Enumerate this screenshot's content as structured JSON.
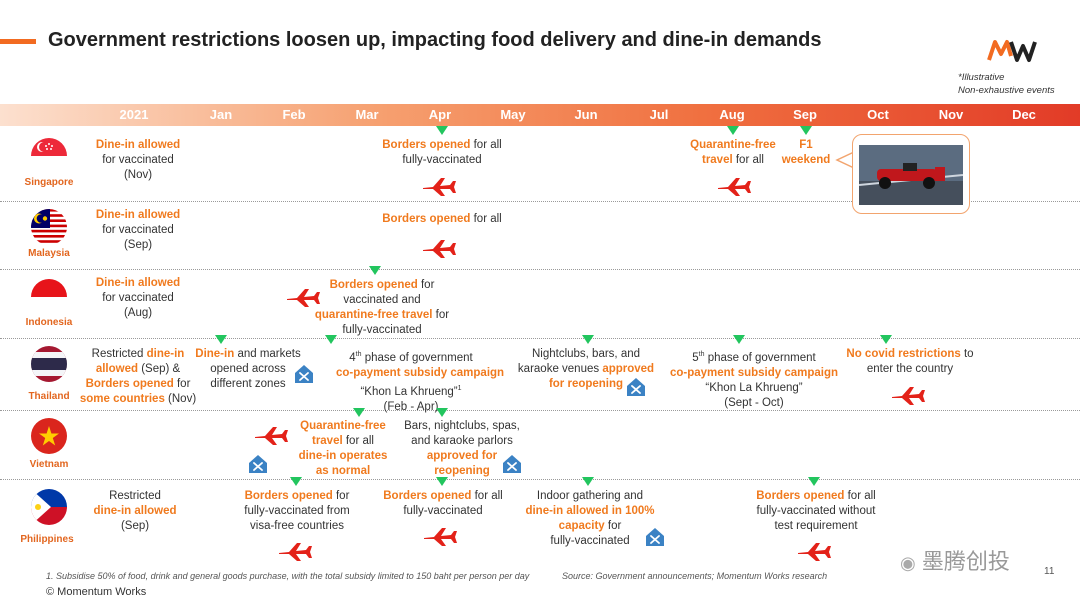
{
  "header": {
    "title": "Government restrictions loosen up, impacting food delivery and dine-in demands",
    "logo": "MW",
    "note1": "*Illustrative",
    "note2": "Non-exhaustive events"
  },
  "timeline": {
    "months": [
      "2021",
      "Jan",
      "Feb",
      "Mar",
      "Apr",
      "May",
      "Jun",
      "Jul",
      "Aug",
      "Sep",
      "Oct",
      "Nov",
      "Dec"
    ]
  },
  "colors": {
    "accent": "#f26b21",
    "highlight": "#f07a1e",
    "marker": "#22c55e",
    "plane": "#e32219",
    "reopen_icon": "#3b82c4"
  },
  "rows": {
    "sg": {
      "country": "Singapore",
      "dine": {
        "a1": "Dine-in allowed",
        "a2": "for vaccinated",
        "a3": "(Nov)"
      },
      "borders": {
        "hl": "Borders opened",
        "t1": " for all",
        "t2": "fully-vaccinated"
      },
      "quarantine": {
        "h1": "Quarantine-free",
        "h2": "travel",
        "t": " for all"
      },
      "f1": {
        "l1": "F1",
        "l2": "weekend"
      }
    },
    "my": {
      "country": "Malaysia",
      "dine": {
        "a1": "Dine-in allowed",
        "a2": "for vaccinated",
        "a3": "(Sep)"
      },
      "borders": {
        "hl": "Borders opened",
        "t": " for all"
      }
    },
    "id": {
      "country": "Indonesia",
      "dine": {
        "a1": "Dine-in allowed",
        "a2": "for vaccinated",
        "a3": "(Aug)"
      },
      "borders": {
        "hl": "Borders opened",
        "t1": " for",
        "t2": "vaccinated and",
        "h3": "quarantine-free travel",
        "t3": " for",
        "t4": "fully-vaccinated"
      }
    },
    "th": {
      "country": "Thailand",
      "restrict": {
        "l1a": "Restricted ",
        "l1b": "dine-in",
        "l2a": "allowed",
        "l2b": " (Sep) &",
        "l3a": "Borders opened",
        "l3b": " for",
        "l4a": "some countries",
        "l4b": " (Nov)"
      },
      "dinein": {
        "h": "Dine-in",
        "t1": " and markets",
        "t2": "opened across",
        "t3": "different zones"
      },
      "phase4": {
        "n": "4",
        "sup": "th",
        "t1": " phase of government",
        "h": "co-payment subsidy campaign",
        "q": "“Khon La Khrueng”",
        "s": "1",
        "p": "(Feb - Apr)"
      },
      "nightclubs": {
        "t1": "Nightclubs, bars, and",
        "t2a": "karaoke venues ",
        "h2": "approved",
        "h3": "for reopening"
      },
      "phase5": {
        "n": "5",
        "sup": "th",
        "t1": " phase of government",
        "h": "co-payment subsidy campaign",
        "q": "“Khon La Khrueng”",
        "p": "(Sept - Oct)"
      },
      "nocovid": {
        "h": "No covid restrictions",
        "t1": " to",
        "t2": "enter the country"
      }
    },
    "vn": {
      "country": "Vietnam",
      "quarantine": {
        "h1": "Quarantine-free",
        "h2": "travel",
        "t2": " for all",
        "h3": "dine-in operates",
        "h4": "as normal"
      },
      "bars": {
        "t1": "Bars, nightclubs, spas,",
        "t2": "and karaoke parlors",
        "h3": "approved for",
        "h4": "reopening"
      }
    },
    "ph": {
      "country": "Philippines",
      "restrict": {
        "t1": "Restricted",
        "h2": "dine-in allowed",
        "t3": "(Sep)"
      },
      "b1": {
        "h": "Borders opened",
        "t1": " for",
        "t2": "fully-vaccinated from",
        "t3": "visa-free countries"
      },
      "b2": {
        "h": "Borders opened",
        "t1": " for all",
        "t2": "fully-vaccinated"
      },
      "indoor": {
        "t1": "Indoor gathering and",
        "h2": "dine-in allowed in 100%",
        "h3": "capacity",
        "t3": " for",
        "t4": "fully-vaccinated"
      },
      "b3": {
        "h": "Borders opened",
        "t1": " for all",
        "t2": "fully-vaccinated without",
        "t3": "test requirement"
      }
    }
  },
  "footer": {
    "footnote": "1. Subsidise 50% of food, drink and general goods purchase, with the total subsidy limited to 150 baht per person per day",
    "source": "Source: Government announcements; Momentum Works research",
    "copyright": "© Momentum Works",
    "watermark": "墨腾创投",
    "page": "11"
  }
}
